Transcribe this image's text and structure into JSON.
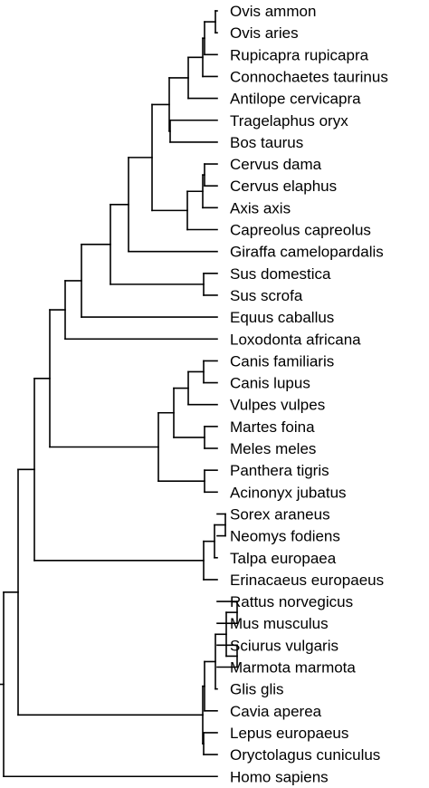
{
  "tree": {
    "leaves": [
      "Ovis ammon",
      "Ovis aries",
      "Rupicapra rupicapra",
      "Connochaetes taurinus",
      "Antilope cervicapra",
      "Tragelaphus oryx",
      "Bos taurus",
      "Cervus dama",
      "Cervus elaphus",
      "Axis axis",
      "Capreolus capreolus",
      "Giraffa camelopardalis",
      "Sus domestica",
      "Sus scrofa",
      "Equus caballus",
      "Loxodonta africana",
      "Canis familiaris",
      "Canis lupus",
      "Vulpes vulpes",
      "Martes foina",
      "Meles meles",
      "Panthera tigris",
      "Acinonyx jubatus",
      "Sorex araneus",
      "Neomys fodiens",
      "Talpa europaea",
      "Erinacaeus europaeus",
      "Rattus norvegicus",
      "Mus musculus",
      "Sciurus vulgaris",
      "Marmota marmota",
      "Glis glis",
      "Cavia aperea",
      "Lepus europaeus",
      "Oryctolagus cuniculus",
      "Homo sapiens"
    ]
  }
}
